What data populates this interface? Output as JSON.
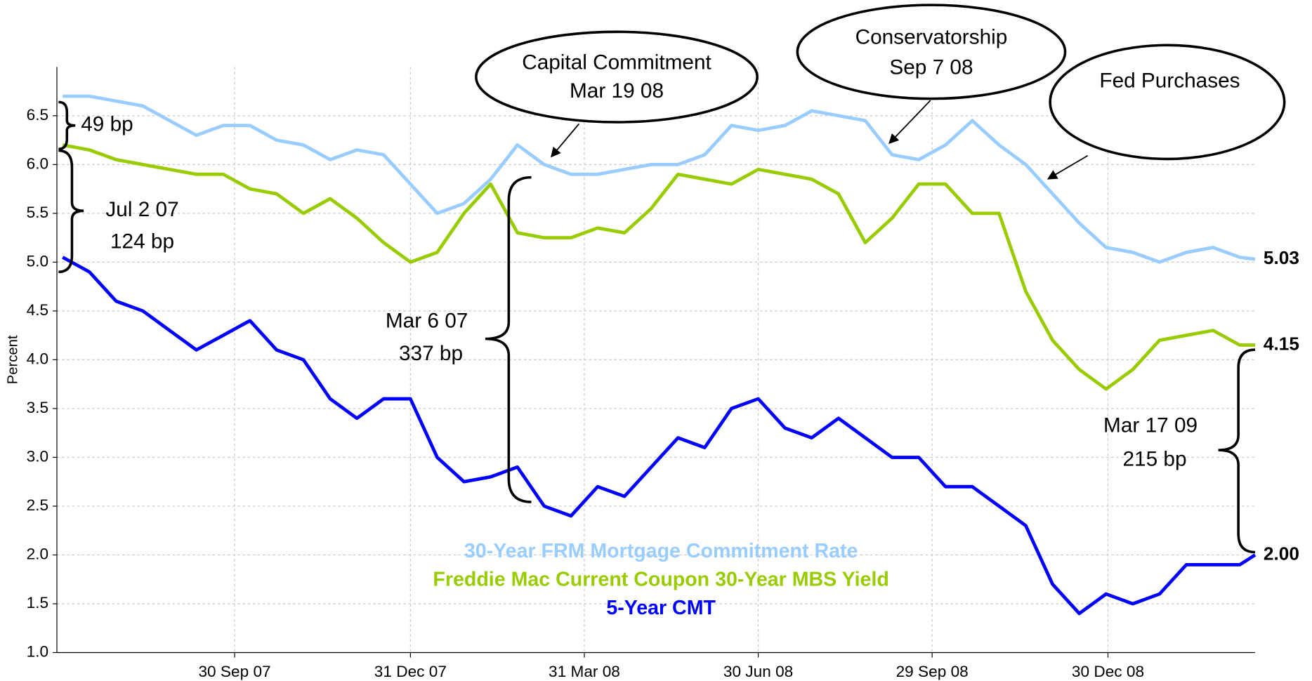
{
  "chart_data": {
    "type": "line",
    "y_label": "Percent",
    "x": [
      "2007-07-02",
      "2007-07-16",
      "2007-07-30",
      "2007-08-13",
      "2007-08-27",
      "2007-09-10",
      "2007-09-24",
      "2007-10-08",
      "2007-10-22",
      "2007-11-05",
      "2007-11-19",
      "2007-12-03",
      "2007-12-17",
      "2007-12-31",
      "2008-01-14",
      "2008-01-28",
      "2008-02-11",
      "2008-02-25",
      "2008-03-10",
      "2008-03-24",
      "2008-04-07",
      "2008-04-21",
      "2008-05-05",
      "2008-05-19",
      "2008-06-02",
      "2008-06-16",
      "2008-06-30",
      "2008-07-14",
      "2008-07-28",
      "2008-08-11",
      "2008-08-25",
      "2008-09-08",
      "2008-09-22",
      "2008-10-06",
      "2008-10-20",
      "2008-11-03",
      "2008-11-17",
      "2008-12-01",
      "2008-12-15",
      "2008-12-29",
      "2009-01-12",
      "2009-01-26",
      "2009-02-09",
      "2009-02-23",
      "2009-03-09",
      "2009-03-17"
    ],
    "series": [
      {
        "name": "30-Year FRM Mortgage Commitment Rate",
        "color": "#99ccff",
        "end_label": "5.03",
        "values": [
          6.7,
          6.7,
          6.65,
          6.6,
          6.45,
          6.3,
          6.4,
          6.4,
          6.25,
          6.2,
          6.05,
          6.15,
          6.1,
          5.8,
          5.5,
          5.6,
          5.85,
          6.2,
          6.0,
          5.9,
          5.9,
          5.95,
          6.0,
          6.0,
          6.1,
          6.4,
          6.35,
          6.4,
          6.55,
          6.5,
          6.45,
          6.1,
          6.05,
          6.2,
          6.45,
          6.2,
          6.0,
          5.7,
          5.4,
          5.15,
          5.1,
          5.0,
          5.1,
          5.15,
          5.05,
          5.03
        ]
      },
      {
        "name": "Freddie Mac Current Coupon 30-Year MBS Yield",
        "color": "#99cc00",
        "end_label": "4.15",
        "values": [
          6.2,
          6.15,
          6.05,
          6.0,
          5.95,
          5.9,
          5.9,
          5.75,
          5.7,
          5.5,
          5.65,
          5.45,
          5.2,
          5.0,
          5.1,
          5.5,
          5.8,
          5.3,
          5.25,
          5.25,
          5.35,
          5.3,
          5.55,
          5.9,
          5.85,
          5.8,
          5.95,
          5.9,
          5.85,
          5.7,
          5.2,
          5.45,
          5.8,
          5.8,
          5.5,
          5.5,
          4.7,
          4.2,
          3.9,
          3.7,
          3.9,
          4.2,
          4.25,
          4.3,
          4.15,
          4.15
        ]
      },
      {
        "name": "5-Year CMT",
        "color": "#0000ff",
        "end_label": "2.00",
        "values": [
          5.05,
          4.9,
          4.6,
          4.5,
          4.3,
          4.1,
          4.25,
          4.4,
          4.1,
          4.0,
          3.6,
          3.4,
          3.6,
          3.6,
          3.0,
          2.75,
          2.8,
          2.9,
          2.5,
          2.4,
          2.7,
          2.6,
          2.9,
          3.2,
          3.1,
          3.5,
          3.6,
          3.3,
          3.2,
          3.4,
          3.2,
          3.0,
          3.0,
          2.7,
          2.7,
          2.5,
          2.3,
          1.7,
          1.4,
          1.6,
          1.5,
          1.6,
          1.9,
          1.9,
          1.9,
          2.0
        ]
      }
    ],
    "xlim": [
      "2007-06-29",
      "2009-03-17"
    ],
    "xticks": [
      {
        "value": "2007-09-30",
        "label": "30 Sep 07"
      },
      {
        "value": "2007-12-31",
        "label": "31 Dec 07"
      },
      {
        "value": "2008-03-31",
        "label": "31 Mar 08"
      },
      {
        "value": "2008-06-30",
        "label": "30 Jun 08"
      },
      {
        "value": "2008-09-29",
        "label": "29 Sep 08"
      },
      {
        "value": "2008-12-30",
        "label": "30 Dec 08"
      }
    ],
    "ylim": [
      1,
      7
    ],
    "yticks": [
      {
        "value": 1,
        "label": "1.0"
      },
      1.5,
      {
        "value": 2,
        "label": "2.0"
      },
      2.5,
      {
        "value": 3,
        "label": "3.0"
      },
      3.5,
      {
        "value": 4,
        "label": "4.0"
      },
      4.5,
      {
        "value": 5,
        "label": "5.0"
      },
      5.5,
      {
        "value": 6,
        "label": "6.0"
      },
      6.5
    ],
    "grid": true,
    "spreads": [
      [
        "49 bp"
      ],
      [
        "Jul 2 07",
        "124 bp"
      ],
      [
        "Mar 6 07",
        "337 bp"
      ],
      [
        "Mar 17 09",
        "215 bp"
      ]
    ],
    "callouts": [
      [
        "Capital Commitment",
        "Mar 19 08"
      ],
      [
        "Conservatorship",
        "Sep 7 08"
      ],
      [
        "Fed Purchases"
      ]
    ]
  }
}
